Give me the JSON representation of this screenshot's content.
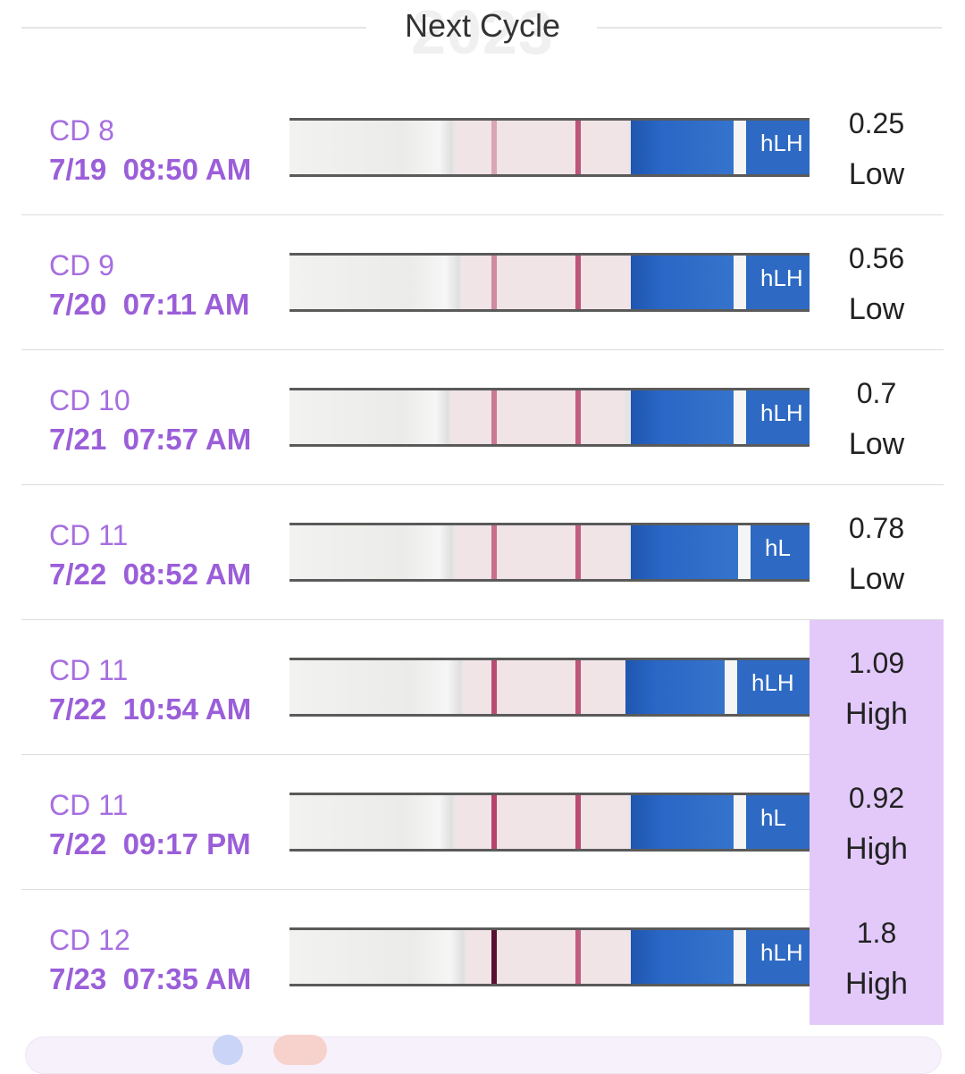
{
  "header": {
    "title": "Next Cycle",
    "watermark": "2023"
  },
  "colors": {
    "accent_purple": "#9b5ed9",
    "high_highlight": "#e2c9fa",
    "test_blue": "#2e6ac4",
    "test_line": "#b0305e"
  },
  "rows": [
    {
      "cd": "CD 8",
      "date": "7/19",
      "time": "08:50 AM",
      "value": "0.25",
      "level": "Low",
      "strip_label": "hLH"
    },
    {
      "cd": "CD 9",
      "date": "7/20",
      "time": "07:11 AM",
      "value": "0.56",
      "level": "Low",
      "strip_label": "hLH"
    },
    {
      "cd": "CD 10",
      "date": "7/21",
      "time": "07:57 AM",
      "value": "0.7",
      "level": "Low",
      "strip_label": "hLH"
    },
    {
      "cd": "CD 11",
      "date": "7/22",
      "time": "08:52 AM",
      "value": "0.78",
      "level": "Low",
      "strip_label": "hL"
    },
    {
      "cd": "CD 11",
      "date": "7/22",
      "time": "10:54 AM",
      "value": "1.09",
      "level": "High",
      "strip_label": "hLH"
    },
    {
      "cd": "CD 11",
      "date": "7/22",
      "time": "09:17 PM",
      "value": "0.92",
      "level": "High",
      "strip_label": "hL"
    },
    {
      "cd": "CD 12",
      "date": "7/23",
      "time": "07:35 AM",
      "value": "1.8",
      "level": "High",
      "strip_label": "hLH"
    }
  ]
}
